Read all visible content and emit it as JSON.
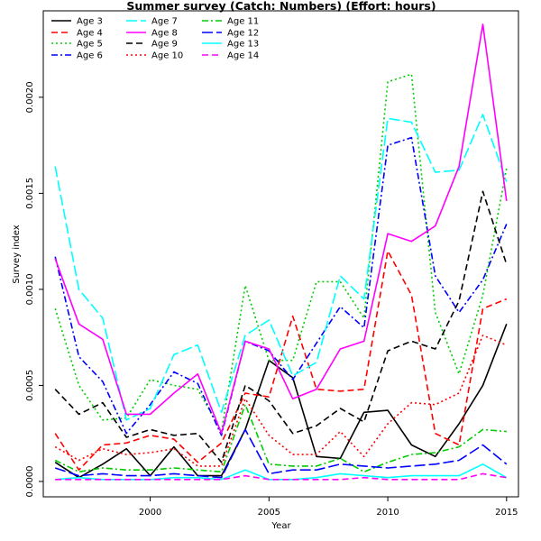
{
  "chart_data": {
    "type": "line",
    "title": "Summer survey (Catch: Numbers) (Effort: hours)",
    "xlabel": "Year",
    "ylabel": "Survey index",
    "xlim": [
      1995.5,
      2015.5
    ],
    "ylim": [
      -8e-05,
      0.00245
    ],
    "x_ticks": [
      2000,
      2005,
      2010,
      2015
    ],
    "x_tick_labels": [
      "2000",
      "2005",
      "2010",
      "2015"
    ],
    "y_ticks": [
      0.0,
      0.0005,
      0.001,
      0.0015,
      0.002
    ],
    "y_tick_labels": [
      "0.0000",
      "0.0005",
      "0.0010",
      "0.0015",
      "0.0020"
    ],
    "grid": false,
    "legend_position": "top-left",
    "x": [
      1996,
      1997,
      1998,
      1999,
      2000,
      2001,
      2002,
      2003,
      2004,
      2005,
      2006,
      2007,
      2008,
      2009,
      2010,
      2011,
      2012,
      2013,
      2014,
      2015
    ],
    "series": [
      {
        "name": "Age 3",
        "color": "#000000",
        "dash": "solid",
        "values": [
          0.0001,
          2e-05,
          9e-05,
          0.00017,
          3e-05,
          0.00018,
          3e-05,
          3e-05,
          0.00027,
          0.00063,
          0.00054,
          0.00013,
          0.00012,
          0.00036,
          0.00037,
          0.00019,
          0.00013,
          0.0003,
          0.0005,
          0.00082
        ]
      },
      {
        "name": "Age 4",
        "color": "#ff0000",
        "dash": "dashed",
        "values": [
          0.00025,
          6e-05,
          0.00019,
          0.0002,
          0.00024,
          0.00022,
          0.0001,
          0.0002,
          0.00046,
          0.00044,
          0.00086,
          0.00048,
          0.00047,
          0.00048,
          0.0012,
          0.00097,
          0.00025,
          0.00019,
          0.0009,
          0.00095
        ]
      },
      {
        "name": "Age 5",
        "color": "#00cc00",
        "dash": "dotted",
        "values": [
          0.0009,
          0.0005,
          0.00032,
          0.00033,
          0.00053,
          0.0005,
          0.00048,
          0.00026,
          0.00102,
          0.00063,
          0.00063,
          0.00104,
          0.00104,
          0.00085,
          0.00208,
          0.00212,
          0.00088,
          0.00056,
          0.00097,
          0.00163
        ]
      },
      {
        "name": "Age 6",
        "color": "#0000ff",
        "dash": "dashdot",
        "values": [
          0.00117,
          0.00065,
          0.00052,
          0.00025,
          0.0004,
          0.00057,
          0.00051,
          0.00024,
          0.00073,
          0.00068,
          0.00053,
          0.00072,
          0.00091,
          0.0008,
          0.00175,
          0.00179,
          0.00107,
          0.00088,
          0.00105,
          0.00134
        ]
      },
      {
        "name": "Age 7",
        "color": "#00ffff",
        "dash": "longdash",
        "values": [
          0.00164,
          0.001,
          0.00085,
          0.00032,
          0.00038,
          0.00066,
          0.00071,
          0.00036,
          0.00076,
          0.00084,
          0.00055,
          0.00062,
          0.00107,
          0.00095,
          0.00189,
          0.00187,
          0.00161,
          0.00162,
          0.00191,
          0.00156
        ]
      },
      {
        "name": "Age 8",
        "color": "#ff00ff",
        "dash": "solid",
        "values": [
          0.00116,
          0.00082,
          0.00074,
          0.00035,
          0.00035,
          0.00046,
          0.00056,
          0.00025,
          0.00073,
          0.00069,
          0.00043,
          0.00048,
          0.00069,
          0.00073,
          0.00129,
          0.00125,
          0.00133,
          0.00164,
          0.00238,
          0.00146
        ]
      },
      {
        "name": "Age 9",
        "color": "#000000",
        "dash": "dashed",
        "values": [
          0.00048,
          0.00035,
          0.00041,
          0.00023,
          0.00027,
          0.00024,
          0.00025,
          0.0001,
          0.0005,
          0.00042,
          0.00025,
          0.00029,
          0.00038,
          0.00031,
          0.00068,
          0.00073,
          0.00069,
          0.00094,
          0.00151,
          0.00113
        ]
      },
      {
        "name": "Age 10",
        "color": "#ff0000",
        "dash": "dotted",
        "values": [
          0.00018,
          0.00011,
          0.00017,
          0.00014,
          0.00015,
          0.00017,
          8e-05,
          8e-05,
          0.00043,
          0.00024,
          0.00014,
          0.00014,
          0.00026,
          0.00013,
          0.0003,
          0.00041,
          0.0004,
          0.00046,
          0.00076,
          0.00071
        ]
      },
      {
        "name": "Age 11",
        "color": "#00cc00",
        "dash": "dashdot",
        "values": [
          0.00011,
          5e-05,
          7e-05,
          6e-05,
          6e-05,
          7e-05,
          6e-05,
          5e-05,
          0.0004,
          9e-05,
          8e-05,
          8e-05,
          0.00012,
          5e-05,
          0.0001,
          0.00014,
          0.00015,
          0.00018,
          0.00027,
          0.00026
        ]
      },
      {
        "name": "Age 12",
        "color": "#0000ff",
        "dash": "longdash",
        "values": [
          7e-05,
          3e-05,
          4e-05,
          3e-05,
          3e-05,
          4e-05,
          3e-05,
          2e-05,
          0.00027,
          4e-05,
          6e-05,
          6e-05,
          9e-05,
          8e-05,
          7e-05,
          8e-05,
          9e-05,
          0.00011,
          0.00019,
          9e-05
        ]
      },
      {
        "name": "Age 13",
        "color": "#00ffff",
        "dash": "solid",
        "values": [
          1e-05,
          2e-05,
          1e-05,
          1e-05,
          1e-05,
          2e-05,
          2e-05,
          1e-05,
          6e-05,
          1e-05,
          1e-05,
          2e-05,
          4e-05,
          3e-05,
          2e-05,
          3e-05,
          3e-05,
          3e-05,
          9e-05,
          2e-05
        ]
      },
      {
        "name": "Age 14",
        "color": "#ff00ff",
        "dash": "dashed",
        "values": [
          1e-05,
          1e-05,
          1e-05,
          1e-05,
          1e-05,
          1e-05,
          1e-05,
          1e-05,
          3e-05,
          1e-05,
          1e-05,
          1e-05,
          1e-05,
          2e-05,
          1e-05,
          1e-05,
          1e-05,
          1e-05,
          4e-05,
          2e-05
        ]
      }
    ]
  }
}
